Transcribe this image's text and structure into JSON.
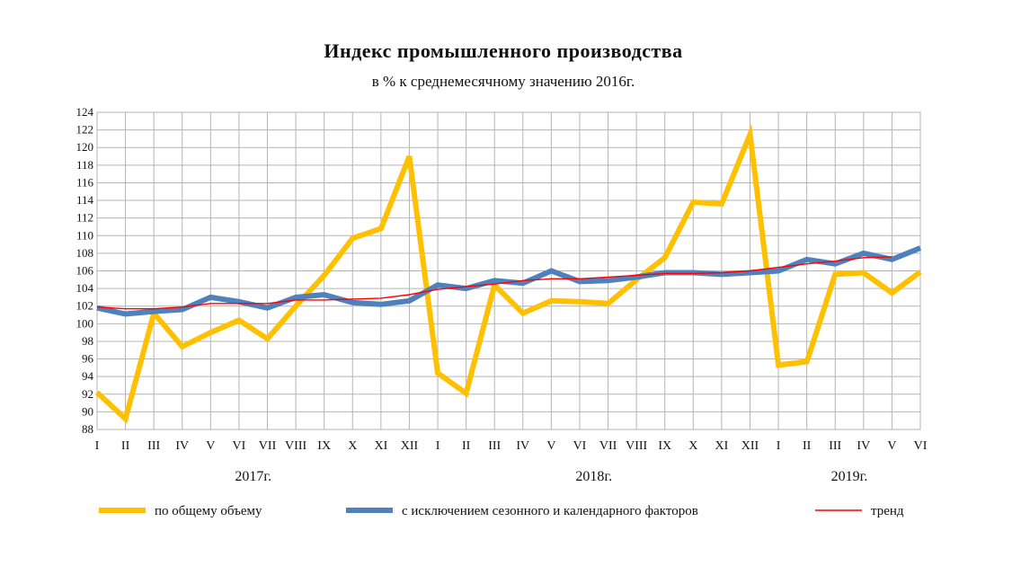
{
  "chart_data": {
    "type": "line",
    "title": "Индекс промышленного производства",
    "subtitle": "в % к среднемесячному значению 2016г.",
    "xlabel": "",
    "ylabel": "",
    "ylim": [
      88,
      124
    ],
    "y_ticks": [
      88,
      90,
      92,
      94,
      96,
      98,
      100,
      102,
      104,
      106,
      108,
      110,
      112,
      114,
      116,
      118,
      120,
      122,
      124
    ],
    "grid": true,
    "legend_position": "bottom",
    "categories": [
      "I",
      "II",
      "III",
      "IV",
      "V",
      "VI",
      "VII",
      "VIII",
      "IX",
      "X",
      "XI",
      "XII",
      "I",
      "II",
      "III",
      "IV",
      "V",
      "VI",
      "VII",
      "VIII",
      "IX",
      "X",
      "XI",
      "XII",
      "I",
      "II",
      "III",
      "IV",
      "V",
      "VI"
    ],
    "year_labels": [
      {
        "label": "2017г.",
        "center_index": 5.5
      },
      {
        "label": "2018г.",
        "center_index": 17.5
      },
      {
        "label": "2019г.",
        "center_index": 26.5
      }
    ],
    "series": [
      {
        "name": "по общему объему",
        "color": "#FFC000",
        "values": [
          92.2,
          89.2,
          101.2,
          97.4,
          99.0,
          100.4,
          98.3,
          102.0,
          105.5,
          109.7,
          110.8,
          119.0,
          94.4,
          92.1,
          104.4,
          101.2,
          102.6,
          102.5,
          102.3,
          105.0,
          107.5,
          113.8,
          113.6,
          121.5,
          95.3,
          95.7,
          105.6,
          105.8,
          103.5,
          105.9
        ]
      },
      {
        "name": "с исключением сезонного и календарного факторов",
        "color": "#4F81BD",
        "values": [
          101.8,
          101.1,
          101.4,
          101.6,
          103.0,
          102.5,
          101.8,
          103.0,
          103.3,
          102.4,
          102.2,
          102.6,
          104.4,
          104.0,
          104.9,
          104.6,
          106.0,
          104.8,
          104.9,
          105.3,
          105.8,
          105.8,
          105.6,
          105.8,
          106.0,
          107.3,
          106.8,
          108.0,
          107.3,
          108.6
        ]
      },
      {
        "name": "тренд",
        "color": "#FF0000",
        "values": [
          101.9,
          101.7,
          101.7,
          101.9,
          102.3,
          102.3,
          102.3,
          102.7,
          102.7,
          102.8,
          102.9,
          103.3,
          103.9,
          104.2,
          104.5,
          104.9,
          105.1,
          105.1,
          105.3,
          105.5,
          105.7,
          105.7,
          105.8,
          106.0,
          106.4,
          106.8,
          107.1,
          107.5,
          107.6,
          null
        ]
      }
    ]
  }
}
